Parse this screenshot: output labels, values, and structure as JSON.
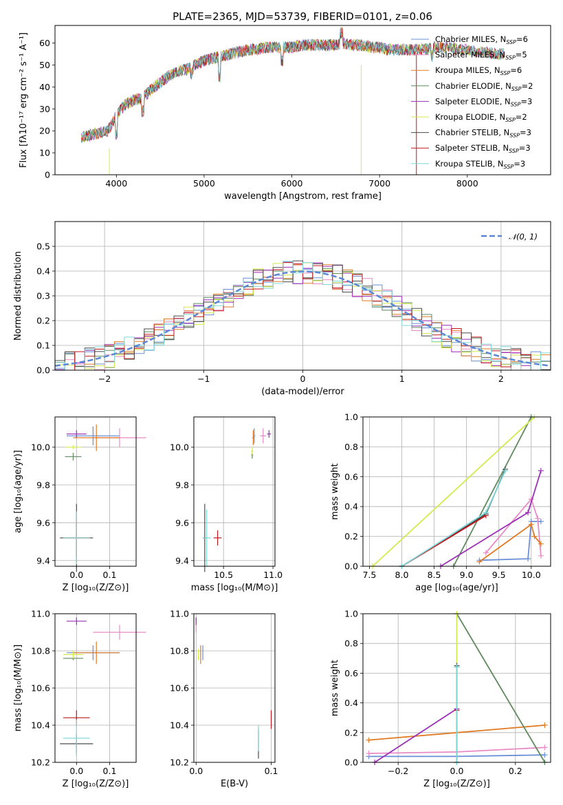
{
  "title": "PLATE=2365, MJD=53739, FIBERID=0101, z=0.06",
  "colors": {
    "chabrier_miles": "#6b8fd6",
    "salpeter_miles": "#e88ac4",
    "kroupa_miles": "#e07b24",
    "chabrier_elodie": "#5e8a5e",
    "salpeter_elodie": "#9b2fb5",
    "kroupa_elodie": "#d4ea4a",
    "chabrier_stelib": "#4a4a4a",
    "salpeter_stelib": "#c0161c",
    "kroupa_stelib": "#7fd8d8",
    "gaussian": "#5b87d6",
    "grid": "#b0b0b0"
  },
  "chart_data": [
    {
      "id": "spectrum",
      "type": "line",
      "xlabel": "wavelength [Angstrom, rest frame]",
      "ylabel": "Flux [fλ10⁻¹⁷ erg cm⁻² s⁻¹ A⁻¹]",
      "xlim": [
        3300,
        8950
      ],
      "ylim": [
        0,
        68
      ],
      "xticks": [
        4000,
        5000,
        6000,
        7000,
        8000
      ],
      "yticks": [
        0,
        10,
        20,
        30,
        40,
        50,
        60
      ],
      "grid": false,
      "legend_position": "top-right",
      "legend": [
        {
          "label": "Chabrier MILES, N",
          "sub": "SSP",
          "n": "=6",
          "color": "chabrier_miles"
        },
        {
          "label": "Salpeter MILES, N",
          "sub": "SSP",
          "n": "=5",
          "color": "salpeter_miles"
        },
        {
          "label": "Kroupa MILES, N",
          "sub": "SSP",
          "n": "=6",
          "color": "kroupa_miles"
        },
        {
          "label": "Chabrier ELODIE, N",
          "sub": "SSP",
          "n": "=2",
          "color": "chabrier_elodie"
        },
        {
          "label": "Salpeter ELODIE, N",
          "sub": "SSP",
          "n": "=3",
          "color": "salpeter_elodie"
        },
        {
          "label": "Kroupa ELODIE, N",
          "sub": "SSP",
          "n": "=2",
          "color": "kroupa_elodie"
        },
        {
          "label": "Chabrier STELIB, N",
          "sub": "SSP",
          "n": "=3",
          "color": "chabrier_stelib"
        },
        {
          "label": "Salpeter STELIB, N",
          "sub": "SSP",
          "n": "=3",
          "color": "salpeter_stelib"
        },
        {
          "label": "Kroupa STELIB, N",
          "sub": "SSP",
          "n": "=3",
          "color": "kroupa_stelib"
        }
      ],
      "continuum": {
        "x": [
          3600,
          3700,
          3800,
          3900,
          4000,
          4100,
          4200,
          4300,
          4400,
          4500,
          4600,
          4700,
          4800,
          4900,
          5000,
          5100,
          5200,
          5300,
          5400,
          5500,
          5600,
          5700,
          5800,
          5900,
          6000,
          6100,
          6200,
          6300,
          6400,
          6500,
          6600,
          6700,
          6800,
          6900,
          7000,
          7100,
          7200,
          7300,
          7400,
          7500,
          7600,
          7700,
          7800,
          7900,
          8000,
          8100,
          8200,
          8300,
          8400,
          8500,
          8600,
          8700,
          8800
        ],
        "y": [
          17,
          18,
          19,
          20,
          27,
          32,
          34,
          35,
          39,
          42,
          45,
          47,
          48,
          50,
          52,
          53,
          54,
          55,
          56,
          57,
          57,
          58,
          58,
          58,
          58,
          59,
          59,
          59,
          59,
          59,
          60,
          59,
          59,
          58,
          58,
          57,
          57,
          57,
          57,
          57,
          58,
          58,
          58,
          57,
          57,
          56,
          56,
          55,
          55,
          55,
          54,
          54,
          53
        ]
      }
    },
    {
      "id": "residuals",
      "type": "bar",
      "xlabel": "(data-model)/error",
      "ylabel": "Normed distribution",
      "xlim": [
        -2.5,
        2.5
      ],
      "ylim": [
        0,
        0.6
      ],
      "xticks": [
        -2,
        -1,
        0,
        1,
        2
      ],
      "yticks": [
        0.0,
        0.1,
        0.2,
        0.3,
        0.4,
        0.5
      ],
      "grid": true,
      "legend_position": "top-right",
      "legend": [
        {
          "label": "𝒩(0, 1)",
          "color": "gaussian",
          "style": "dashed"
        }
      ],
      "bin_width": 0.1
    },
    {
      "id": "age_vs_Z",
      "type": "scatter",
      "xlabel": "Z [log₁₀(Z/Z⊙)]",
      "ylabel": "age  [log₁₀(age/yr)]",
      "xlim": [
        -0.065,
        0.18
      ],
      "ylim": [
        9.37,
        10.16
      ],
      "xticks": [
        0.0,
        0.1
      ],
      "yticks": [
        9.4,
        9.6,
        9.8,
        10.0
      ],
      "grid": true,
      "points": [
        {
          "s": "chabrier_miles",
          "x": 0.05,
          "y": 10.06,
          "ex": 0.08,
          "ey": 0.05
        },
        {
          "s": "salpeter_miles",
          "x": 0.13,
          "y": 10.05,
          "ex": 0.08,
          "ey": 0.05
        },
        {
          "s": "kroupa_miles",
          "x": 0.06,
          "y": 10.05,
          "ex": 0.07,
          "ey": 0.07
        },
        {
          "s": "chabrier_elodie",
          "x": -0.01,
          "y": 9.95,
          "ex": 0.025,
          "ey": 0.02
        },
        {
          "s": "salpeter_elodie",
          "x": 0.0,
          "y": 10.07,
          "ex": 0.03,
          "ey": 0.02
        },
        {
          "s": "kroupa_elodie",
          "x": -0.01,
          "y": 10.0,
          "ex": 0.025,
          "ey": 0.01
        },
        {
          "s": "chabrier_stelib",
          "x": 0.0,
          "y": 9.52,
          "ex": 0.05,
          "ey": 0.18
        },
        {
          "s": "salpeter_stelib",
          "x": 0.0,
          "y": 9.52,
          "ex": 0.04,
          "ey": 0.1
        },
        {
          "s": "kroupa_stelib",
          "x": 0.0,
          "y": 9.52,
          "ex": 0.04,
          "ey": 0.14
        }
      ]
    },
    {
      "id": "age_vs_mass",
      "type": "scatter",
      "xlabel": "mass [log₁₀(M/M⊙)]",
      "ylabel": "",
      "xlim": [
        10.2,
        11.02
      ],
      "ylim": [
        9.37,
        10.16
      ],
      "xticks": [
        10.5,
        11.0
      ],
      "yticks": [
        9.4,
        9.6,
        9.8,
        10.0
      ],
      "grid": true,
      "points": [
        {
          "s": "chabrier_miles",
          "x": 10.81,
          "y": 10.06,
          "ex": 0.01,
          "ey": 0.04
        },
        {
          "s": "salpeter_miles",
          "x": 10.9,
          "y": 10.06,
          "ex": 0.03,
          "ey": 0.04
        },
        {
          "s": "kroupa_miles",
          "x": 10.8,
          "y": 10.05,
          "ex": 0.01,
          "ey": 0.04
        },
        {
          "s": "chabrier_elodie",
          "x": 10.79,
          "y": 9.96,
          "ex": 0.01,
          "ey": 0.02
        },
        {
          "s": "salpeter_elodie",
          "x": 10.96,
          "y": 10.07,
          "ex": 0.02,
          "ey": 0.02
        },
        {
          "s": "kroupa_elodie",
          "x": 10.79,
          "y": 9.98,
          "ex": 0.01,
          "ey": 0.02
        },
        {
          "s": "chabrier_stelib",
          "x": 10.31,
          "y": 9.52,
          "ex": 0.02,
          "ey": 0.18
        },
        {
          "s": "salpeter_stelib",
          "x": 10.44,
          "y": 9.52,
          "ex": 0.04,
          "ey": 0.04
        },
        {
          "s": "kroupa_stelib",
          "x": 10.33,
          "y": 9.52,
          "ex": 0.04,
          "ey": 0.15
        }
      ]
    },
    {
      "id": "weight_vs_age",
      "type": "line",
      "xlabel": "age  [log₁₀(age/yr)]",
      "ylabel": "mass weight",
      "xlim": [
        7.4,
        10.3
      ],
      "ylim": [
        0,
        1
      ],
      "xticks": [
        7.5,
        8.0,
        8.5,
        9.0,
        9.5,
        10.0
      ],
      "yticks": [
        0.0,
        0.2,
        0.4,
        0.6,
        0.8,
        1.0
      ],
      "grid": true,
      "series": [
        {
          "s": "chabrier_miles",
          "x": [
            9.2,
            9.95,
            10.0,
            10.15
          ],
          "y": [
            0.04,
            0.05,
            0.3,
            0.3
          ]
        },
        {
          "s": "salpeter_miles",
          "x": [
            9.3,
            10.0,
            10.1,
            10.15
          ],
          "y": [
            0.09,
            0.45,
            0.32,
            0.07
          ]
        },
        {
          "s": "kroupa_miles",
          "x": [
            9.2,
            10.0,
            10.05,
            10.15
          ],
          "y": [
            0.03,
            0.28,
            0.2,
            0.15
          ]
        },
        {
          "s": "chabrier_elodie",
          "x": [
            8.8,
            10.0
          ],
          "y": [
            0.0,
            1.0
          ]
        },
        {
          "s": "salpeter_elodie",
          "x": [
            8.6,
            9.95,
            10.15
          ],
          "y": [
            0.0,
            0.36,
            0.64
          ]
        },
        {
          "s": "kroupa_elodie",
          "x": [
            7.55,
            10.05
          ],
          "y": [
            0.0,
            1.0
          ]
        },
        {
          "s": "chabrier_stelib",
          "x": [
            8.0,
            9.3,
            9.6
          ],
          "y": [
            0.0,
            0.35,
            0.65
          ]
        },
        {
          "s": "salpeter_stelib",
          "x": [
            8.0,
            9.3
          ],
          "y": [
            0.0,
            0.34
          ]
        },
        {
          "s": "kroupa_stelib",
          "x": [
            8.0,
            9.3,
            9.6
          ],
          "y": [
            0.0,
            0.36,
            0.64
          ]
        }
      ]
    },
    {
      "id": "mass_vs_Z",
      "type": "scatter",
      "xlabel": "Z [log₁₀(Z/Z⊙)]",
      "ylabel": "mass [log₁₀(M/M⊙)]",
      "xlim": [
        -0.065,
        0.18
      ],
      "ylim": [
        10.2,
        11.0
      ],
      "xticks": [
        0.0,
        0.1
      ],
      "yticks": [
        10.2,
        10.4,
        10.6,
        10.8,
        11.0
      ],
      "grid": true,
      "points": [
        {
          "s": "chabrier_miles",
          "x": 0.05,
          "y": 10.79,
          "ex": 0.08,
          "ey": 0.04
        },
        {
          "s": "salpeter_miles",
          "x": 0.13,
          "y": 10.9,
          "ex": 0.08,
          "ey": 0.04
        },
        {
          "s": "kroupa_miles",
          "x": 0.06,
          "y": 10.79,
          "ex": 0.07,
          "ey": 0.06
        },
        {
          "s": "chabrier_elodie",
          "x": -0.01,
          "y": 10.76,
          "ex": 0.03,
          "ey": 0.01
        },
        {
          "s": "salpeter_elodie",
          "x": 0.0,
          "y": 10.96,
          "ex": 0.03,
          "ey": 0.02
        },
        {
          "s": "kroupa_elodie",
          "x": -0.01,
          "y": 10.78,
          "ex": 0.03,
          "ey": 0.02
        },
        {
          "s": "chabrier_stelib",
          "x": 0.0,
          "y": 10.3,
          "ex": 0.05,
          "ey": 0.05
        },
        {
          "s": "salpeter_stelib",
          "x": 0.0,
          "y": 10.44,
          "ex": 0.04,
          "ey": 0.04
        },
        {
          "s": "kroupa_stelib",
          "x": 0.0,
          "y": 10.33,
          "ex": 0.04,
          "ey": 0.1
        }
      ]
    },
    {
      "id": "mass_vs_ebv",
      "type": "scatter",
      "xlabel": "E(B-V)",
      "ylabel": "",
      "xlim": [
        -0.003,
        0.105
      ],
      "ylim": [
        10.2,
        11.0
      ],
      "xticks": [
        0.0,
        0.1
      ],
      "yticks": [
        10.2,
        10.4,
        10.6,
        10.8,
        11.0
      ],
      "grid": true,
      "points": [
        {
          "s": "chabrier_miles",
          "x": 0.009,
          "y": 10.79,
          "ex": 0.0,
          "ey": 0.04
        },
        {
          "s": "salpeter_miles",
          "x": 0.0,
          "y": 10.94,
          "ex": 0.0,
          "ey": 0.04
        },
        {
          "s": "kroupa_miles",
          "x": 0.006,
          "y": 10.78,
          "ex": 0.0,
          "ey": 0.05
        },
        {
          "s": "chabrier_elodie",
          "x": 0.003,
          "y": 10.76,
          "ex": 0.0,
          "ey": 0.01
        },
        {
          "s": "salpeter_elodie",
          "x": 0.0,
          "y": 10.96,
          "ex": 0.0,
          "ey": 0.02
        },
        {
          "s": "kroupa_elodie",
          "x": 0.003,
          "y": 10.78,
          "ex": 0.0,
          "ey": 0.03
        },
        {
          "s": "chabrier_stelib",
          "x": 0.083,
          "y": 10.3,
          "ex": 0.0,
          "ey": 0.08
        },
        {
          "s": "salpeter_stelib",
          "x": 0.1,
          "y": 10.43,
          "ex": 0.0,
          "ey": 0.05
        },
        {
          "s": "kroupa_stelib",
          "x": 0.083,
          "y": 10.33,
          "ex": 0.0,
          "ey": 0.07
        }
      ]
    },
    {
      "id": "weight_vs_Z",
      "type": "line",
      "xlabel": "Z [log₁₀(Z/Z⊙)]",
      "ylabel": "mass weight",
      "xlim": [
        -0.32,
        0.32
      ],
      "ylim": [
        0,
        1
      ],
      "xticks": [
        -0.2,
        0.0,
        0.2
      ],
      "yticks": [
        0.0,
        0.2,
        0.4,
        0.6,
        0.8,
        1.0
      ],
      "grid": true,
      "series": [
        {
          "s": "chabrier_miles",
          "x": [
            -0.3,
            0.0,
            0.3
          ],
          "y": [
            0.04,
            0.04,
            0.05
          ]
        },
        {
          "s": "salpeter_miles",
          "x": [
            -0.3,
            0.0,
            0.3
          ],
          "y": [
            0.06,
            0.07,
            0.1
          ]
        },
        {
          "s": "kroupa_miles",
          "x": [
            -0.3,
            0.3
          ],
          "y": [
            0.15,
            0.25
          ]
        },
        {
          "s": "chabrier_elodie",
          "x": [
            0.0,
            0.3
          ],
          "y": [
            1.0,
            0.0
          ]
        },
        {
          "s": "salpeter_elodie",
          "x": [
            -0.28,
            0.0
          ],
          "y": [
            0.0,
            0.36
          ]
        },
        {
          "s": "kroupa_elodie",
          "x": [
            0.0,
            0.0
          ],
          "y": [
            0.0,
            1.0
          ]
        },
        {
          "s": "chabrier_stelib",
          "x": [
            0.0,
            0.0
          ],
          "y": [
            0.0,
            0.65
          ]
        },
        {
          "s": "salpeter_stelib",
          "x": [
            0.0
          ],
          "y": [
            0.35
          ]
        },
        {
          "s": "kroupa_stelib",
          "x": [
            0.0,
            0.0
          ],
          "y": [
            0.0,
            0.64
          ]
        }
      ]
    }
  ]
}
